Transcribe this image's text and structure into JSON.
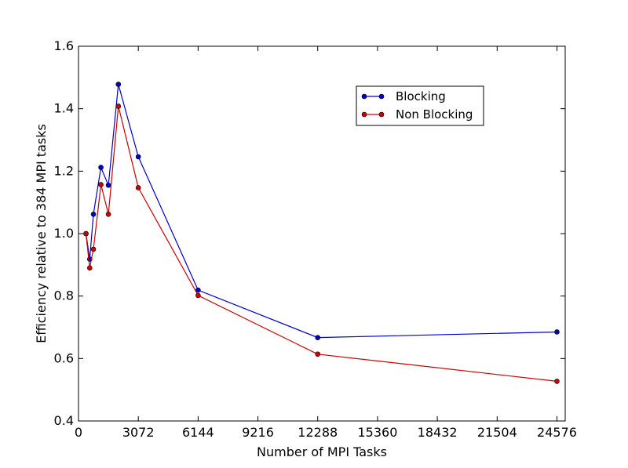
{
  "chart_data": {
    "type": "line",
    "title": "",
    "xlabel": "Number of MPI Tasks",
    "ylabel": "Efficiency relative to 384 MPI tasks",
    "xlim": [
      0,
      25000
    ],
    "ylim": [
      0.4,
      1.6
    ],
    "xticks": [
      0,
      3072,
      6144,
      9216,
      12288,
      15360,
      18432,
      21504,
      24576
    ],
    "yticks": [
      0.4,
      0.6,
      0.8,
      1.0,
      1.2,
      1.4,
      1.6
    ],
    "xtick_labels": [
      "0",
      "3072",
      "6144",
      "9216",
      "12288",
      "15360",
      "18432",
      "21504",
      "24576"
    ],
    "ytick_labels": [
      "0.4",
      "0.6",
      "0.8",
      "1.0",
      "1.2",
      "1.4",
      "1.6"
    ],
    "grid": false,
    "legend_position": "top-right",
    "series": [
      {
        "name": "Blocking",
        "color": "#0000cc",
        "x": [
          384,
          576,
          768,
          1152,
          1536,
          2048,
          3072,
          6144,
          12288,
          24576
        ],
        "y": [
          1.0,
          0.918,
          1.062,
          1.212,
          1.155,
          1.478,
          1.246,
          0.819,
          0.667,
          0.685
        ]
      },
      {
        "name": "Non Blocking",
        "color": "#cc0000",
        "x": [
          384,
          576,
          768,
          1152,
          1536,
          2048,
          3072,
          6144,
          12288,
          24576
        ],
        "y": [
          1.0,
          0.89,
          0.95,
          1.157,
          1.062,
          1.408,
          1.147,
          0.802,
          0.614,
          0.527
        ]
      }
    ]
  }
}
